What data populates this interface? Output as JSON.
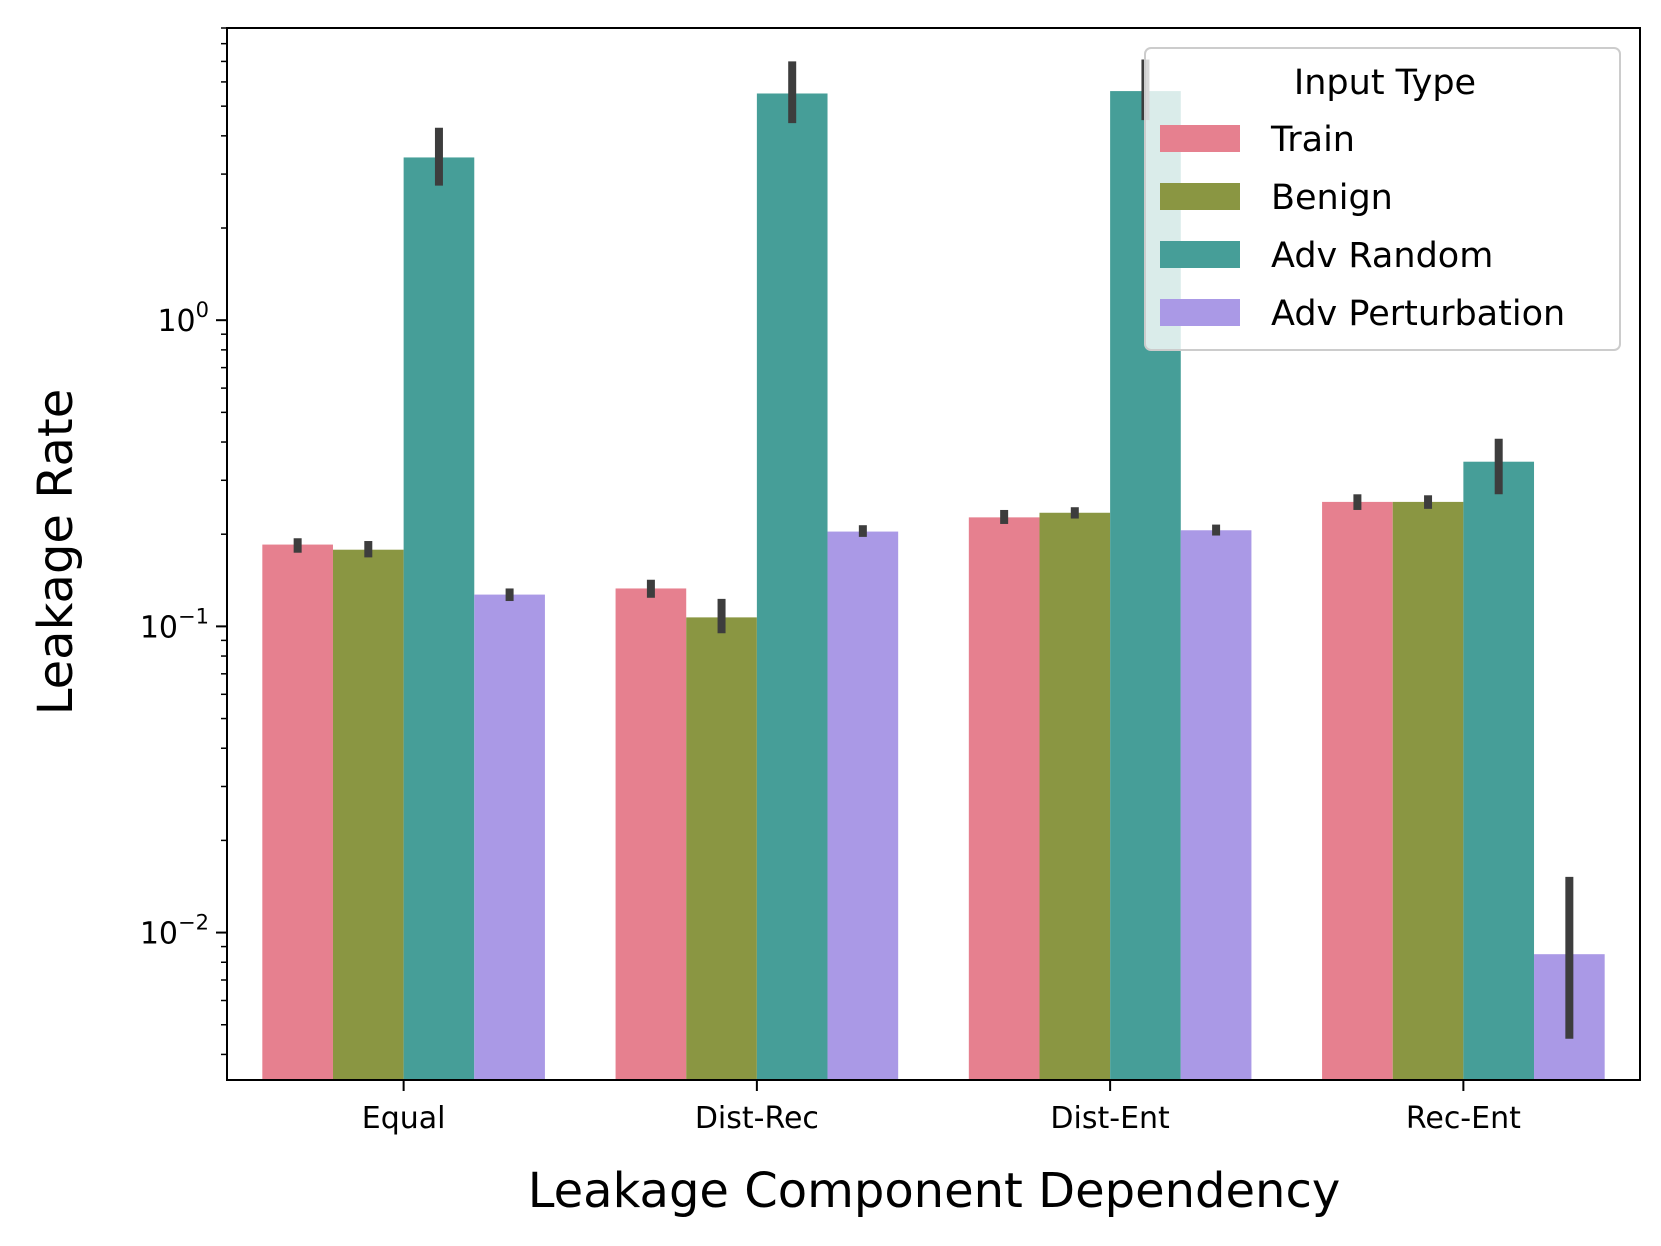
{
  "chart_data": {
    "type": "bar",
    "title": "",
    "xlabel": "Leakage Component Dependency",
    "ylabel": "Leakage Rate",
    "yscale": "log",
    "ylim": [
      0.0033,
      9.0
    ],
    "categories": [
      "Equal",
      "Dist-Rec",
      "Dist-Ent",
      "Rec-Ent"
    ],
    "yticks": [
      {
        "value": 1,
        "base": "10",
        "exp": "0"
      },
      {
        "value": 0.1,
        "base": "10",
        "exp": "−1"
      },
      {
        "value": 0.01,
        "base": "10",
        "exp": "−2"
      }
    ],
    "legend": {
      "title": "Input Type",
      "position": "top-right"
    },
    "series": [
      {
        "name": "Train",
        "color": "#e6808f",
        "values": [
          0.185,
          0.133,
          0.227,
          0.255
        ],
        "err_low": [
          0.174,
          0.124,
          0.216,
          0.24
        ],
        "err_high": [
          0.194,
          0.142,
          0.24,
          0.27
        ]
      },
      {
        "name": "Benign",
        "color": "#8a9642",
        "values": [
          0.178,
          0.107,
          0.235,
          0.255
        ],
        "err_low": [
          0.168,
          0.095,
          0.225,
          0.242
        ],
        "err_high": [
          0.19,
          0.123,
          0.245,
          0.268
        ]
      },
      {
        "name": "Adv Random",
        "color": "#469e98",
        "values": [
          3.4,
          5.5,
          5.6,
          0.345
        ],
        "err_low": [
          2.75,
          4.4,
          4.5,
          0.27
        ],
        "err_high": [
          4.25,
          7.0,
          7.1,
          0.41
        ]
      },
      {
        "name": "Adv Perturbation",
        "color": "#aa99e6",
        "values": [
          0.127,
          0.204,
          0.206,
          0.0085
        ],
        "err_low": [
          0.121,
          0.196,
          0.198,
          0.0045
        ],
        "err_high": [
          0.133,
          0.214,
          0.215,
          0.0152
        ]
      }
    ]
  }
}
